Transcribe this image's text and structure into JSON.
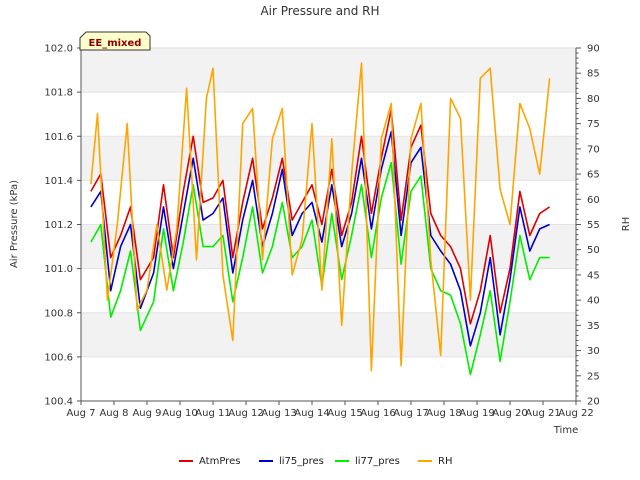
{
  "chart_data": {
    "type": "line",
    "title": "Air Pressure and RH",
    "xlabel": "Time",
    "ylabel": "Air Pressure (kPa)",
    "y2label": "RH",
    "badge": "EE_mixed",
    "x_range": [
      7,
      22
    ],
    "ylim": [
      100.4,
      102.0
    ],
    "y2lim": [
      20,
      90
    ],
    "xtick_labels": [
      "Aug 7",
      "Aug 8",
      "Aug 9",
      "Aug 10",
      "Aug 11",
      "Aug 12",
      "Aug 13",
      "Aug 14",
      "Aug 15",
      "Aug 16",
      "Aug 17",
      "Aug 18",
      "Aug 19",
      "Aug 20",
      "Aug 21",
      "Aug 22"
    ],
    "ytick_labels": [
      "100.4",
      "100.6",
      "100.8",
      "101.0",
      "101.2",
      "101.4",
      "101.6",
      "101.8",
      "102.0"
    ],
    "y2tick_labels": [
      "20",
      "25",
      "30",
      "35",
      "40",
      "45",
      "50",
      "55",
      "60",
      "65",
      "70",
      "75",
      "80",
      "85",
      "90"
    ],
    "grid_bands": true,
    "legend_position": "bottom",
    "series": [
      {
        "name": "AtmPres",
        "color": "#dd0000",
        "axis": "left",
        "x": [
          7.3,
          7.6,
          7.9,
          8.2,
          8.5,
          8.8,
          9.2,
          9.5,
          9.8,
          10.1,
          10.4,
          10.7,
          11.0,
          11.3,
          11.6,
          11.9,
          12.2,
          12.5,
          12.8,
          13.1,
          13.4,
          13.7,
          14.0,
          14.3,
          14.6,
          14.9,
          15.2,
          15.5,
          15.8,
          16.1,
          16.4,
          16.7,
          17.0,
          17.3,
          17.6,
          17.9,
          18.2,
          18.5,
          18.8,
          19.1,
          19.4,
          19.7,
          20.0,
          20.3,
          20.6,
          20.9,
          21.2
        ],
        "y": [
          101.35,
          101.43,
          101.05,
          101.15,
          101.28,
          100.95,
          101.05,
          101.38,
          101.05,
          101.35,
          101.6,
          101.3,
          101.32,
          101.4,
          101.05,
          101.3,
          101.5,
          101.18,
          101.32,
          101.5,
          101.22,
          101.3,
          101.38,
          101.2,
          101.45,
          101.15,
          101.3,
          101.6,
          101.25,
          101.5,
          101.72,
          101.22,
          101.55,
          101.65,
          101.25,
          101.15,
          101.1,
          101.0,
          100.75,
          100.9,
          101.15,
          100.8,
          101.0,
          101.35,
          101.15,
          101.25,
          101.28
        ]
      },
      {
        "name": "li75_pres",
        "color": "#0000cc",
        "axis": "left",
        "x": [
          7.3,
          7.6,
          7.9,
          8.2,
          8.5,
          8.8,
          9.2,
          9.5,
          9.8,
          10.1,
          10.4,
          10.7,
          11.0,
          11.3,
          11.6,
          11.9,
          12.2,
          12.5,
          12.8,
          13.1,
          13.4,
          13.7,
          14.0,
          14.3,
          14.6,
          14.9,
          15.2,
          15.5,
          15.8,
          16.1,
          16.4,
          16.7,
          17.0,
          17.3,
          17.6,
          17.9,
          18.2,
          18.5,
          18.8,
          19.1,
          19.4,
          19.7,
          20.0,
          20.3,
          20.6,
          20.9,
          21.2
        ],
        "y": [
          101.28,
          101.35,
          100.9,
          101.1,
          101.2,
          100.82,
          100.98,
          101.28,
          101.0,
          101.25,
          101.5,
          101.22,
          101.25,
          101.32,
          100.98,
          101.22,
          101.4,
          101.1,
          101.25,
          101.45,
          101.15,
          101.25,
          101.3,
          101.12,
          101.38,
          101.1,
          101.25,
          101.5,
          101.18,
          101.45,
          101.62,
          101.15,
          101.48,
          101.55,
          101.15,
          101.08,
          101.02,
          100.9,
          100.65,
          100.8,
          101.05,
          100.7,
          100.95,
          101.28,
          101.08,
          101.18,
          101.2
        ]
      },
      {
        "name": "li77_pres",
        "color": "#00ee00",
        "axis": "left",
        "x": [
          7.3,
          7.6,
          7.9,
          8.2,
          8.5,
          8.8,
          9.2,
          9.5,
          9.8,
          10.1,
          10.4,
          10.7,
          11.0,
          11.3,
          11.6,
          11.9,
          12.2,
          12.5,
          12.8,
          13.1,
          13.4,
          13.7,
          14.0,
          14.3,
          14.6,
          14.9,
          15.2,
          15.5,
          15.8,
          16.1,
          16.4,
          16.7,
          17.0,
          17.3,
          17.6,
          17.9,
          18.2,
          18.5,
          18.8,
          19.1,
          19.4,
          19.7,
          20.0,
          20.3,
          20.6,
          20.9,
          21.2
        ],
        "y": [
          101.12,
          101.2,
          100.78,
          100.9,
          101.08,
          100.72,
          100.85,
          101.18,
          100.9,
          101.12,
          101.38,
          101.1,
          101.1,
          101.15,
          100.85,
          101.05,
          101.28,
          100.98,
          101.1,
          101.3,
          101.05,
          101.1,
          101.22,
          100.92,
          101.25,
          100.95,
          101.15,
          101.38,
          101.05,
          101.32,
          101.48,
          101.02,
          101.35,
          101.42,
          101.0,
          100.9,
          100.88,
          100.75,
          100.52,
          100.7,
          100.9,
          100.58,
          100.85,
          101.15,
          100.95,
          101.05,
          101.05
        ]
      },
      {
        "name": "RH",
        "color": "#ffa500",
        "axis": "right",
        "x": [
          7.3,
          7.5,
          7.8,
          8.1,
          8.4,
          8.7,
          9.0,
          9.3,
          9.6,
          9.9,
          10.2,
          10.5,
          10.8,
          11.0,
          11.3,
          11.6,
          11.9,
          12.2,
          12.5,
          12.8,
          13.1,
          13.4,
          13.7,
          14.0,
          14.3,
          14.6,
          14.9,
          15.2,
          15.5,
          15.8,
          16.1,
          16.4,
          16.7,
          17.0,
          17.3,
          17.6,
          17.9,
          18.2,
          18.5,
          18.8,
          19.1,
          19.4,
          19.7,
          20.0,
          20.3,
          20.6,
          20.9,
          21.2
        ],
        "y": [
          63,
          77,
          40,
          55,
          75,
          38,
          42,
          55,
          42,
          54,
          82,
          48,
          80,
          86,
          45,
          32,
          75,
          78,
          48,
          72,
          78,
          45,
          52,
          75,
          42,
          72,
          35,
          65,
          87,
          26,
          72,
          79,
          27,
          72,
          79,
          48,
          29,
          80,
          76,
          40,
          84,
          86,
          62,
          55,
          79,
          74,
          65,
          84
        ]
      }
    ]
  }
}
